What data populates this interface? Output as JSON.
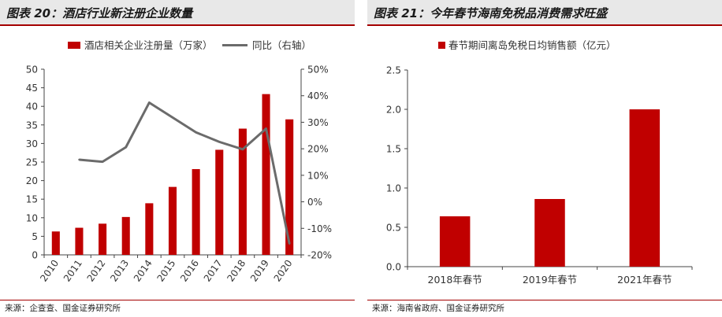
{
  "panels": {
    "left": {
      "title": "图表 20：酒店行业新注册企业数量",
      "source": "来源：企查查、国金证券研究所"
    },
    "right": {
      "title": "图表 21：今年春节海南免税品消费需求旺盛",
      "source": "来源：海南省政府、国金证券研究所"
    }
  },
  "colors": {
    "bar": "#c00000",
    "line": "#6b6b6b",
    "accent": "#a40000"
  },
  "chart_data": [
    {
      "type": "bar",
      "title": "图表 20：酒店行业新注册企业数量",
      "categories": [
        "2010",
        "2011",
        "2012",
        "2013",
        "2014",
        "2015",
        "2016",
        "2017",
        "2018",
        "2019",
        "2020"
      ],
      "series": [
        {
          "name": "酒店相关企业注册量（万家）",
          "type": "bar",
          "axis": "left",
          "values": [
            6.3,
            7.3,
            8.4,
            10.2,
            13.9,
            18.3,
            23.1,
            28.3,
            34.0,
            43.3,
            36.5
          ]
        },
        {
          "name": "同比（右轴）",
          "type": "line",
          "axis": "right",
          "values": [
            null,
            15.9,
            15.1,
            20.6,
            37.4,
            31.8,
            26.2,
            22.6,
            19.8,
            27.6,
            -15.8
          ]
        }
      ],
      "ylim": [
        0,
        50
      ],
      "yticks": [
        "0",
        "5",
        "10",
        "15",
        "20",
        "25",
        "30",
        "35",
        "40",
        "45",
        "50"
      ],
      "y2lim": [
        -20,
        50
      ],
      "y2ticks": [
        "-20%",
        "-10%",
        "0%",
        "10%",
        "20%",
        "30%",
        "40%",
        "50%"
      ],
      "legend": "top",
      "grid": false
    },
    {
      "type": "bar",
      "title": "图表 21：今年春节海南免税品消费需求旺盛",
      "categories": [
        "2018年春节",
        "2019年春节",
        "2021年春节"
      ],
      "series": [
        {
          "name": "春节期间离岛免税日均销售额（亿元）",
          "values": [
            0.64,
            0.86,
            2.0
          ]
        }
      ],
      "ylim": [
        0,
        2.5
      ],
      "yticks": [
        "0.0",
        "0.5",
        "1.0",
        "1.5",
        "2.0",
        "2.5"
      ],
      "legend": "top",
      "grid": false
    }
  ]
}
